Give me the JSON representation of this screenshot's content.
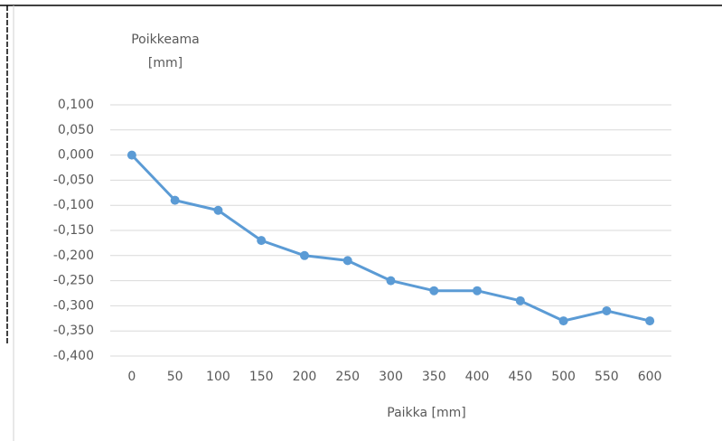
{
  "chart_data": {
    "type": "line",
    "ylabel": [
      "Poikkeama",
      "[mm]"
    ],
    "xlabel": "Paikka [mm]",
    "categories": [
      "0",
      "50",
      "100",
      "150",
      "200",
      "250",
      "300",
      "350",
      "400",
      "450",
      "500",
      "550",
      "600"
    ],
    "series": [
      {
        "color": "#5b9bd5",
        "values": [
          0,
          -0.09,
          -0.11,
          -0.17,
          -0.2,
          -0.21,
          -0.25,
          -0.27,
          -0.27,
          -0.29,
          -0.33,
          -0.31,
          -0.33
        ]
      }
    ],
    "ylim": [
      -0.4,
      0.1
    ],
    "yticks": [
      {
        "value": 0.1,
        "label": "0,100"
      },
      {
        "value": 0.05,
        "label": "0,050"
      },
      {
        "value": 0,
        "label": "0,000"
      },
      {
        "value": -0.05,
        "label": "-0,050"
      },
      {
        "value": -0.1,
        "label": "-0,100"
      },
      {
        "value": -0.15,
        "label": "-0,150"
      },
      {
        "value": -0.2,
        "label": "-0,200"
      },
      {
        "value": -0.25,
        "label": "-0,250"
      },
      {
        "value": -0.3,
        "label": "-0,300"
      },
      {
        "value": -0.35,
        "label": "-0,350"
      },
      {
        "value": -0.4,
        "label": "-0,400"
      }
    ],
    "grid": true
  }
}
